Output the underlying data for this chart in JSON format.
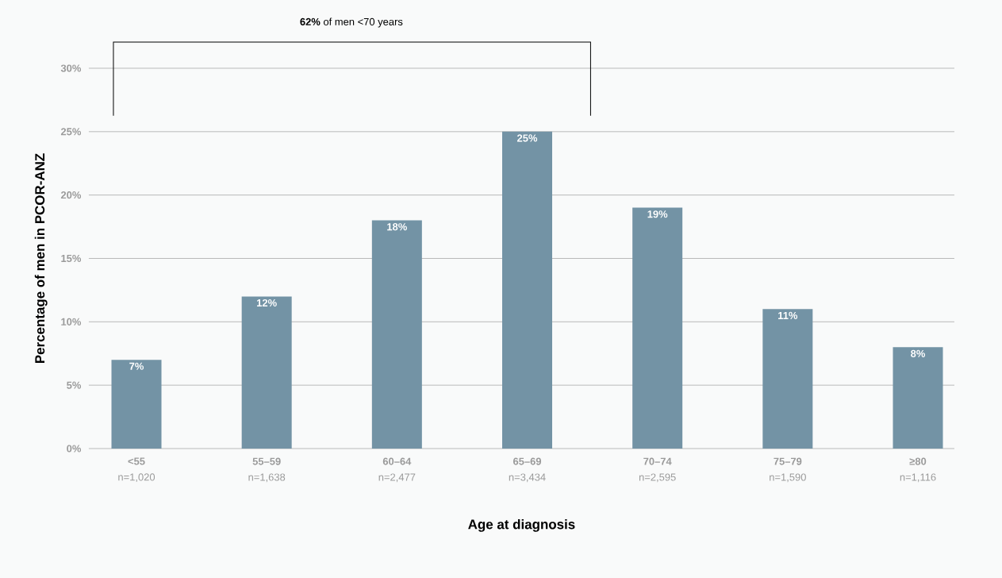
{
  "chart_data": {
    "type": "bar",
    "xlabel": "Age at diagnosis",
    "ylabel": "Percentage of men in PCOR-ANZ",
    "categories": [
      "**<55** n=1,020",
      "**55–59** n=1,638",
      "**60–64** n=2,477",
      "**65–69** n=3,434",
      "**70–74** n=2,595",
      "**75–79** n=1,590",
      "**≥80** n=1,116"
    ],
    "values": [
      7,
      12,
      18,
      25,
      19,
      11,
      8
    ],
    "value_labels": [
      "7%",
      "12%",
      "18%",
      "25%",
      "19%",
      "11%",
      "8%"
    ],
    "color": "#7393a5",
    "ylim": [
      0,
      30
    ],
    "yticks": [
      {
        "value": 0,
        "label": "0%"
      },
      {
        "value": 5,
        "label": "5%"
      },
      {
        "value": 10,
        "label": "10%"
      },
      {
        "value": 15,
        "label": "15%"
      },
      {
        "value": 20,
        "label": "20%"
      },
      {
        "value": 25,
        "label": "25%"
      },
      {
        "value": 30,
        "label": "30%"
      }
    ],
    "grid": "y",
    "annotations": [
      "**62%** of men <70 years"
    ]
  }
}
